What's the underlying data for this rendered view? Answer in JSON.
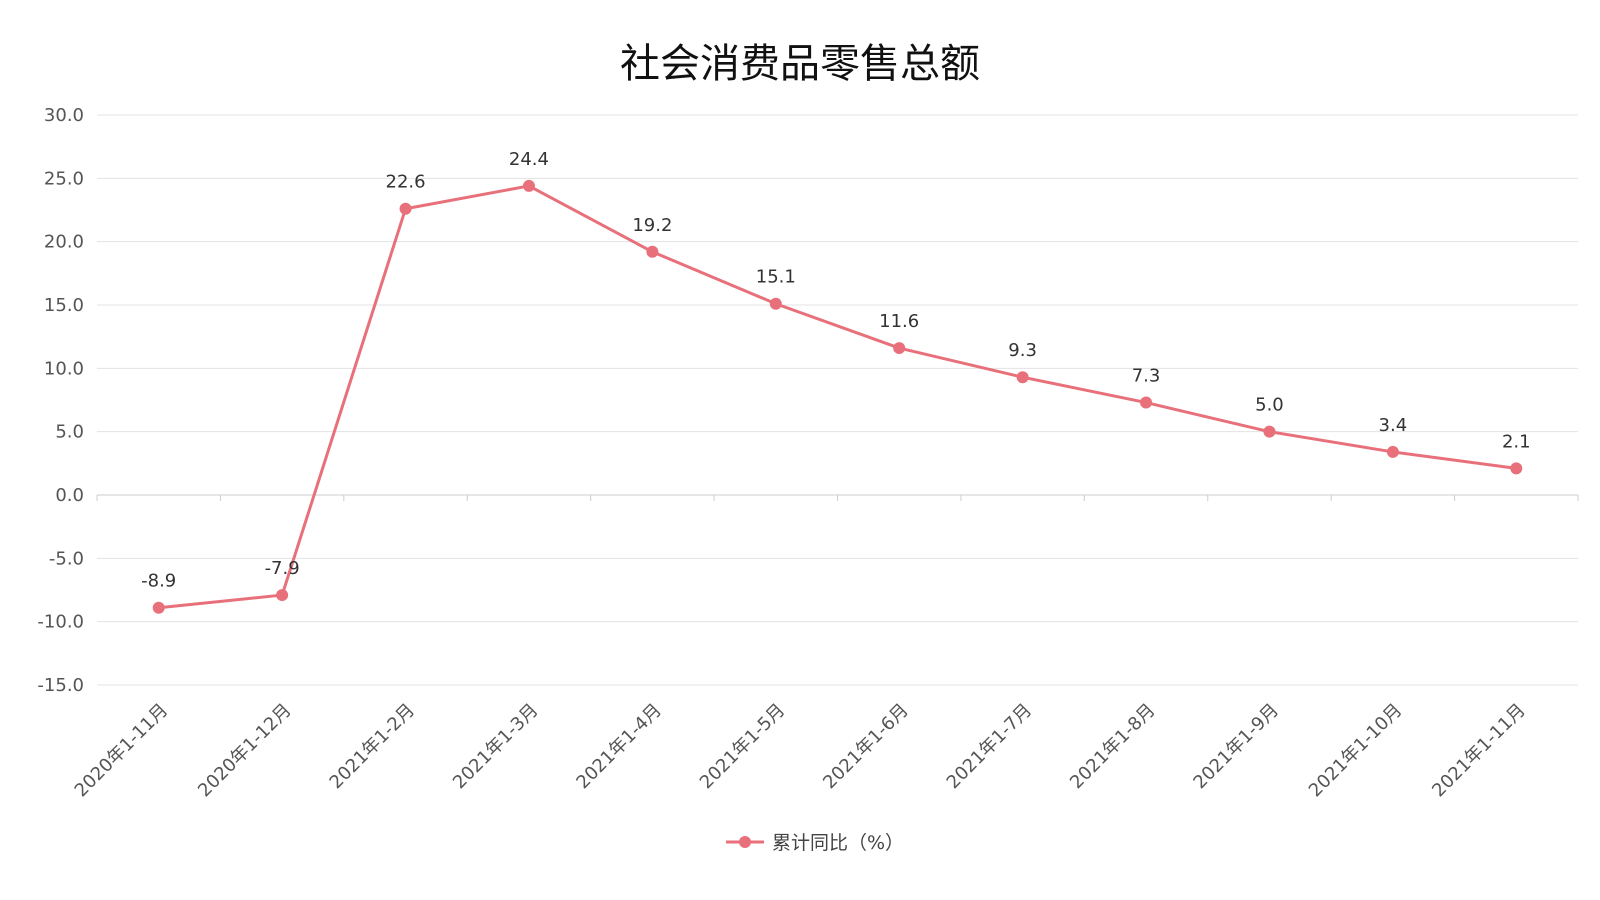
{
  "chart_data": {
    "type": "line",
    "title": "社会消费品零售总额",
    "categories": [
      "2020年1-11月",
      "2020年1-12月",
      "2021年1-2月",
      "2021年1-3月",
      "2021年1-4月",
      "2021年1-5月",
      "2021年1-6月",
      "2021年1-7月",
      "2021年1-8月",
      "2021年1-9月",
      "2021年1-10月",
      "2021年1-11月"
    ],
    "series": [
      {
        "name": "累计同比（%）",
        "values": [
          -8.9,
          -7.9,
          22.6,
          24.4,
          19.2,
          15.1,
          11.6,
          9.3,
          7.3,
          5.0,
          3.4,
          2.1
        ],
        "data_labels": [
          "-8.9",
          "-7.9",
          "22.6",
          "24.4",
          "19.2",
          "15.1",
          "11.6",
          "9.3",
          "7.3",
          "5.0",
          "3.4",
          "2.1"
        ],
        "color": "#e8707a"
      }
    ],
    "yticks": [
      "-15.0",
      "-10.0",
      "-5.0",
      "0.0",
      "5.0",
      "10.0",
      "15.0",
      "20.0",
      "25.0",
      "30.0"
    ],
    "ylim": [
      -15,
      30
    ],
    "grid": true,
    "legend_position": "bottom-center",
    "xlabel": "",
    "ylabel": ""
  },
  "colors": {
    "series": "#e8707a",
    "grid": "#e3e3e3",
    "axis": "#cccccc"
  }
}
